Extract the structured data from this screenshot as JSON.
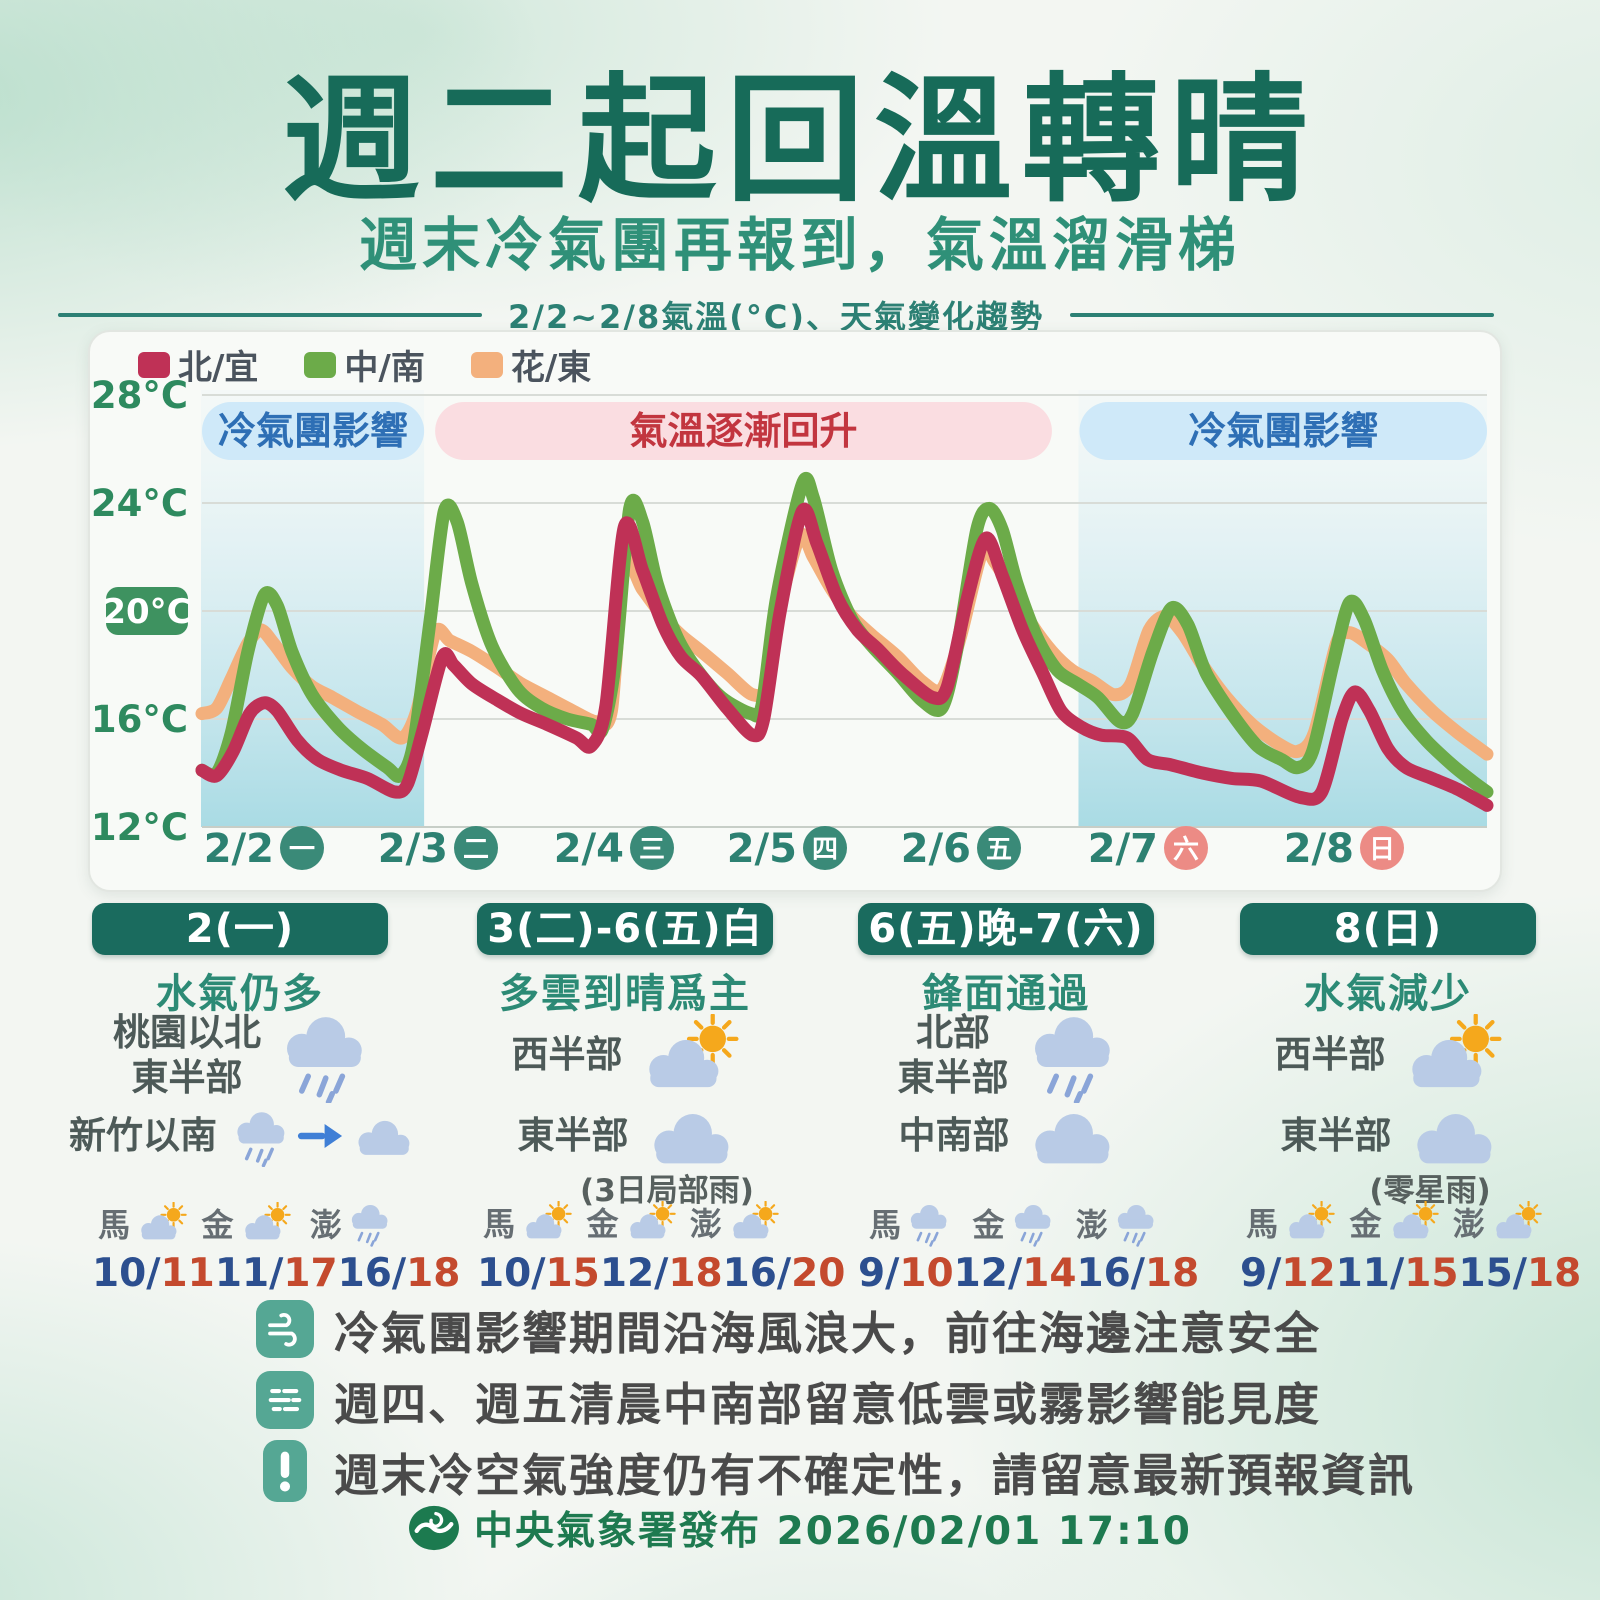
{
  "header": {
    "title": "週二起回溫轉晴",
    "subtitle": "週末冷氣團再報到，氣溫溜滑梯",
    "divider_label": "2/2~2/8氣溫(°C)、天氣變化趨勢"
  },
  "chart_data": {
    "type": "line",
    "title": "2/2~2/8氣溫(°C)、天氣變化趨勢",
    "ylabel": "氣溫(°C)",
    "ylim": [
      12,
      28
    ],
    "x_unit": "days from 2/2 00:00",
    "xlim": [
      0,
      7
    ],
    "grid": true,
    "yticks": [
      {
        "label": "28°C",
        "value": 28
      },
      {
        "label": "24°C",
        "value": 24
      },
      {
        "label": "20°C",
        "value": 20
      },
      {
        "label": "16°C",
        "value": 16
      },
      {
        "label": "12°C",
        "value": 12
      }
    ],
    "ytick_highlight": "20°C",
    "days": [
      {
        "date": "2/2",
        "weekday": "一",
        "weekend": false
      },
      {
        "date": "2/3",
        "weekday": "二",
        "weekend": false
      },
      {
        "date": "2/4",
        "weekday": "三",
        "weekend": false
      },
      {
        "date": "2/5",
        "weekday": "四",
        "weekend": false
      },
      {
        "date": "2/6",
        "weekday": "五",
        "weekend": false
      },
      {
        "date": "2/7",
        "weekday": "六",
        "weekend": true
      },
      {
        "date": "2/8",
        "weekday": "日",
        "weekend": true
      }
    ],
    "annotations": [
      {
        "label": "冷氣團影響",
        "type": "cold",
        "from": 0.0,
        "to": 1.21
      },
      {
        "label": "氣溫逐漸回升",
        "type": "warm",
        "from": 1.27,
        "to": 4.63
      },
      {
        "label": "冷氣團影響",
        "type": "cold",
        "from": 4.78,
        "to": 7.0
      }
    ],
    "series": [
      {
        "name": "花/東",
        "color": "#f3b07d",
        "points": [
          [
            0,
            16.2
          ],
          [
            0.08,
            16.4
          ],
          [
            0.16,
            17.5
          ],
          [
            0.25,
            18.8
          ],
          [
            0.32,
            19.3
          ],
          [
            0.39,
            18.8
          ],
          [
            0.49,
            17.9
          ],
          [
            0.6,
            17.2
          ],
          [
            0.71,
            16.8
          ],
          [
            0.84,
            16.3
          ],
          [
            0.98,
            15.8
          ],
          [
            1.09,
            15.3
          ],
          [
            1.17,
            16.3
          ],
          [
            1.27,
            19.2
          ],
          [
            1.35,
            18.9
          ],
          [
            1.47,
            18.5
          ],
          [
            1.61,
            17.9
          ],
          [
            1.74,
            17.3
          ],
          [
            1.88,
            16.8
          ],
          [
            2.02,
            16.3
          ],
          [
            2.15,
            15.9
          ],
          [
            2.23,
            16.3
          ],
          [
            2.3,
            21.7
          ],
          [
            2.4,
            20.8
          ],
          [
            2.51,
            19.8
          ],
          [
            2.61,
            19.1
          ],
          [
            2.72,
            18.5
          ],
          [
            2.86,
            17.7
          ],
          [
            3.0,
            16.9
          ],
          [
            3.08,
            17.3
          ],
          [
            3.16,
            20.5
          ],
          [
            3.26,
            22.8
          ],
          [
            3.33,
            22.0
          ],
          [
            3.43,
            20.8
          ],
          [
            3.54,
            19.8
          ],
          [
            3.65,
            19.1
          ],
          [
            3.79,
            18.3
          ],
          [
            3.92,
            17.4
          ],
          [
            4.03,
            17.1
          ],
          [
            4.13,
            19.0
          ],
          [
            4.25,
            22.2
          ],
          [
            4.32,
            21.8
          ],
          [
            4.41,
            20.8
          ],
          [
            4.52,
            19.5
          ],
          [
            4.63,
            18.5
          ],
          [
            4.74,
            17.8
          ],
          [
            4.85,
            17.4
          ],
          [
            4.97,
            16.9
          ],
          [
            5.06,
            17.3
          ],
          [
            5.16,
            19.3
          ],
          [
            5.25,
            19.8
          ],
          [
            5.34,
            19.2
          ],
          [
            5.45,
            18.0
          ],
          [
            5.58,
            16.8
          ],
          [
            5.72,
            15.8
          ],
          [
            5.86,
            15.1
          ],
          [
            5.97,
            14.8
          ],
          [
            6.06,
            15.5
          ],
          [
            6.18,
            18.8
          ],
          [
            6.25,
            19.2
          ],
          [
            6.35,
            18.8
          ],
          [
            6.46,
            18.2
          ],
          [
            6.56,
            17.3
          ],
          [
            6.7,
            16.3
          ],
          [
            6.84,
            15.5
          ],
          [
            7,
            14.7
          ]
        ]
      },
      {
        "name": "中/南",
        "color": "#6cab49",
        "points": [
          [
            0,
            14.1
          ],
          [
            0.08,
            14.0
          ],
          [
            0.16,
            15.5
          ],
          [
            0.25,
            18.5
          ],
          [
            0.34,
            20.6
          ],
          [
            0.41,
            20.2
          ],
          [
            0.49,
            18.5
          ],
          [
            0.6,
            16.9
          ],
          [
            0.74,
            15.7
          ],
          [
            0.87,
            14.9
          ],
          [
            1.01,
            14.2
          ],
          [
            1.08,
            13.9
          ],
          [
            1.15,
            15.0
          ],
          [
            1.24,
            19.5
          ],
          [
            1.32,
            23.7
          ],
          [
            1.39,
            23.3
          ],
          [
            1.47,
            21.0
          ],
          [
            1.58,
            18.7
          ],
          [
            1.72,
            17.1
          ],
          [
            1.85,
            16.4
          ],
          [
            1.99,
            16.0
          ],
          [
            2.12,
            15.8
          ],
          [
            2.18,
            15.6
          ],
          [
            2.25,
            18.0
          ],
          [
            2.33,
            23.8
          ],
          [
            2.4,
            23.3
          ],
          [
            2.48,
            21.0
          ],
          [
            2.59,
            19.0
          ],
          [
            2.7,
            17.8
          ],
          [
            2.83,
            16.8
          ],
          [
            2.99,
            16.2
          ],
          [
            3.05,
            16.5
          ],
          [
            3.13,
            20.5
          ],
          [
            3.27,
            24.7
          ],
          [
            3.33,
            24.2
          ],
          [
            3.43,
            21.5
          ],
          [
            3.54,
            19.7
          ],
          [
            3.65,
            18.7
          ],
          [
            3.79,
            17.7
          ],
          [
            3.92,
            16.7
          ],
          [
            4.03,
            16.4
          ],
          [
            4.11,
            18.5
          ],
          [
            4.22,
            23.0
          ],
          [
            4.29,
            23.8
          ],
          [
            4.36,
            23.0
          ],
          [
            4.44,
            21.0
          ],
          [
            4.55,
            19.0
          ],
          [
            4.66,
            17.8
          ],
          [
            4.77,
            17.3
          ],
          [
            4.88,
            16.8
          ],
          [
            5.0,
            15.9
          ],
          [
            5.07,
            16.2
          ],
          [
            5.18,
            18.5
          ],
          [
            5.28,
            20.1
          ],
          [
            5.37,
            19.5
          ],
          [
            5.47,
            17.7
          ],
          [
            5.61,
            16.2
          ],
          [
            5.75,
            15.0
          ],
          [
            5.88,
            14.5
          ],
          [
            5.97,
            14.2
          ],
          [
            6.05,
            14.8
          ],
          [
            6.16,
            18.0
          ],
          [
            6.25,
            20.3
          ],
          [
            6.33,
            19.7
          ],
          [
            6.43,
            17.8
          ],
          [
            6.54,
            16.3
          ],
          [
            6.67,
            15.2
          ],
          [
            6.81,
            14.3
          ],
          [
            6.92,
            13.7
          ],
          [
            7,
            13.3
          ]
        ]
      },
      {
        "name": "北/宜",
        "color": "#bf3156",
        "points": [
          [
            0,
            14.1
          ],
          [
            0.08,
            13.9
          ],
          [
            0.17,
            14.8
          ],
          [
            0.26,
            16.2
          ],
          [
            0.34,
            16.6
          ],
          [
            0.41,
            16.3
          ],
          [
            0.52,
            15.2
          ],
          [
            0.63,
            14.5
          ],
          [
            0.76,
            14.1
          ],
          [
            0.9,
            13.8
          ],
          [
            1.05,
            13.3
          ],
          [
            1.12,
            13.6
          ],
          [
            1.2,
            15.5
          ],
          [
            1.31,
            18.3
          ],
          [
            1.37,
            18.0
          ],
          [
            1.47,
            17.3
          ],
          [
            1.61,
            16.7
          ],
          [
            1.74,
            16.2
          ],
          [
            1.88,
            15.8
          ],
          [
            2.04,
            15.3
          ],
          [
            2.12,
            15.0
          ],
          [
            2.2,
            16.5
          ],
          [
            2.3,
            23.1
          ],
          [
            2.4,
            21.5
          ],
          [
            2.51,
            19.5
          ],
          [
            2.61,
            18.3
          ],
          [
            2.72,
            17.6
          ],
          [
            2.86,
            16.4
          ],
          [
            3.0,
            15.4
          ],
          [
            3.06,
            16.0
          ],
          [
            3.15,
            20.0
          ],
          [
            3.27,
            23.7
          ],
          [
            3.35,
            22.5
          ],
          [
            3.46,
            20.5
          ],
          [
            3.57,
            19.3
          ],
          [
            3.68,
            18.6
          ],
          [
            3.81,
            17.7
          ],
          [
            3.98,
            16.8
          ],
          [
            4.06,
            17.2
          ],
          [
            4.17,
            20.5
          ],
          [
            4.27,
            22.7
          ],
          [
            4.36,
            21.3
          ],
          [
            4.47,
            19.3
          ],
          [
            4.58,
            17.7
          ],
          [
            4.68,
            16.3
          ],
          [
            4.79,
            15.7
          ],
          [
            4.9,
            15.4
          ],
          [
            5.04,
            15.3
          ],
          [
            5.15,
            14.5
          ],
          [
            5.28,
            14.3
          ],
          [
            5.45,
            14.0
          ],
          [
            5.61,
            13.8
          ],
          [
            5.77,
            13.7
          ],
          [
            5.98,
            13.1
          ],
          [
            6.1,
            13.3
          ],
          [
            6.21,
            16.0
          ],
          [
            6.28,
            17.0
          ],
          [
            6.36,
            16.3
          ],
          [
            6.46,
            14.9
          ],
          [
            6.56,
            14.2
          ],
          [
            6.7,
            13.8
          ],
          [
            6.84,
            13.4
          ],
          [
            7,
            12.8
          ]
        ]
      }
    ],
    "legend_position": "top-left"
  },
  "forecast_columns": [
    {
      "period": "2(一)",
      "summary": "水氣仍多",
      "rows": [
        {
          "region": "桃園以北\n東半部",
          "icons": [
            "rain"
          ]
        },
        {
          "region": "新竹以南",
          "icons": [
            "rain",
            "arrow-right",
            "cloud"
          ]
        }
      ],
      "islands": [
        {
          "name": "馬",
          "icon": "cloud-sun",
          "low": "10",
          "high": "11"
        },
        {
          "name": "金",
          "icon": "cloud-sun",
          "low": "11",
          "high": "17"
        },
        {
          "name": "澎",
          "icon": "rain",
          "low": "16",
          "high": "18"
        }
      ]
    },
    {
      "period": "3(二)-6(五)白",
      "summary": "多雲到晴爲主",
      "rows": [
        {
          "region": "西半部",
          "icons": [
            "cloud-sun"
          ]
        },
        {
          "region": "東半部",
          "icons": [
            "cloud"
          ],
          "note": "(3日局部雨)"
        }
      ],
      "islands": [
        {
          "name": "馬",
          "icon": "cloud-sun",
          "low": "10",
          "high": "15"
        },
        {
          "name": "金",
          "icon": "cloud-sun",
          "low": "12",
          "high": "18"
        },
        {
          "name": "澎",
          "icon": "cloud-sun",
          "low": "16",
          "high": "20"
        }
      ]
    },
    {
      "period": "6(五)晚-7(六)",
      "summary": "鋒面通過",
      "rows": [
        {
          "region": "北部\n東半部",
          "icons": [
            "rain"
          ]
        },
        {
          "region": "中南部",
          "icons": [
            "cloud"
          ]
        }
      ],
      "islands": [
        {
          "name": "馬",
          "icon": "rain",
          "low": "9",
          "high": "10"
        },
        {
          "name": "金",
          "icon": "rain",
          "low": "12",
          "high": "14"
        },
        {
          "name": "澎",
          "icon": "rain",
          "low": "16",
          "high": "18"
        }
      ]
    },
    {
      "period": "8(日)",
      "summary": "水氣減少",
      "rows": [
        {
          "region": "西半部",
          "icons": [
            "cloud-sun"
          ]
        },
        {
          "region": "東半部",
          "icons": [
            "cloud"
          ],
          "note": "(零星雨)"
        }
      ],
      "islands": [
        {
          "name": "馬",
          "icon": "cloud-sun",
          "low": "9",
          "high": "12"
        },
        {
          "name": "金",
          "icon": "cloud-sun",
          "low": "11",
          "high": "15"
        },
        {
          "name": "澎",
          "icon": "cloud-sun",
          "low": "15",
          "high": "18"
        }
      ]
    }
  ],
  "notes": [
    {
      "icon": "wind",
      "text": "冷氣團影響期間沿海風浪大，前往海邊注意安全"
    },
    {
      "icon": "fog",
      "text": "週四、週五清晨中南部留意低雲或霧影響能見度"
    },
    {
      "icon": "alert",
      "text": "週末冷空氣強度仍有不確定性，請留意最新預報資訊"
    }
  ],
  "footer": {
    "agency": "中央氣象署發布",
    "datetime": "2026/02/01 17:10"
  },
  "colors": {
    "title": "#176b59",
    "subtitle": "#2f9078",
    "divider": "#2c8074",
    "cold_band_bg": "#cfe9f9",
    "cold_band_text": "#2e6fb5",
    "warm_band_bg": "#fadde1",
    "warm_band_text": "#c2353f",
    "cold_region_top": "#e8f4f7",
    "cold_region_bottom": "#a9dbe4",
    "weekday_badge": "#3a8a78",
    "weekend_badge": "#ec8b85",
    "axis_label": "#2e8a5f",
    "axis_badge_bg": "#3e9260",
    "gridline": "#d8dcd7",
    "column_header_bg": "#1a6b5e",
    "column_summary": "#2c8a75",
    "temp_low": "#2c4f8f",
    "temp_high": "#c44a2e",
    "note_icon_bg": "#55a794",
    "footer": "#1e7a50",
    "cloud": "#b9cbe6",
    "sun": "#f5a81c",
    "rain_drop": "#8aa5d8",
    "arrow": "#3f7fd6"
  }
}
